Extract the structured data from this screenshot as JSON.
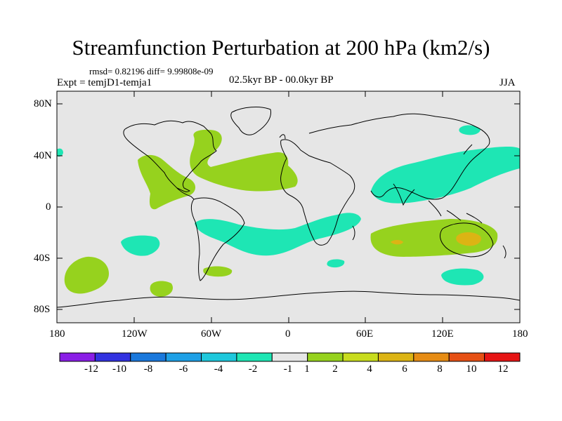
{
  "header": {
    "title": "Streamfunction Perturbation at 200 hPa (km2/s)",
    "stats": "rmsd= 0.82196 diff= 9.99808e-09",
    "experiment": "Expt = temjD1-temja1",
    "period": "02.5kyr BP - 00.0kyr BP",
    "season": "JJA"
  },
  "axes": {
    "lat_labels": [
      "80N",
      "40N",
      "0",
      "40S",
      "80S"
    ],
    "lon_labels": [
      "180",
      "120W",
      "60W",
      "0",
      "60E",
      "120E",
      "180"
    ]
  },
  "colorbar": {
    "colors": [
      "#8a1ee6",
      "#3232e0",
      "#1a78dc",
      "#1ea0e6",
      "#1ec8dc",
      "#1ee6b4",
      "#e6e6e6",
      "#96d21e",
      "#c8dc1e",
      "#dcb414",
      "#e68c14",
      "#e65014",
      "#e61414"
    ],
    "labels": [
      "-12",
      "-10",
      "-8",
      "-6",
      "-4",
      "-2",
      "-1",
      "1",
      "2",
      "4",
      "6",
      "8",
      "10",
      "12"
    ]
  },
  "palette": {
    "ocean_bg": "#e6e6e6",
    "green": "#96d21e",
    "teal": "#1ee6b4",
    "orange": "#dcb414"
  }
}
